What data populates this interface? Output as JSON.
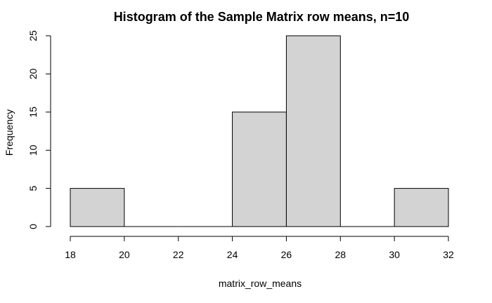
{
  "chart_data": {
    "type": "bar",
    "title": "Histogram of the Sample Matrix row means, n=10",
    "xlabel": "matrix_row_means",
    "ylabel": "Frequency",
    "bins": [
      {
        "from": 18,
        "to": 20,
        "value": 5
      },
      {
        "from": 20,
        "to": 22,
        "value": 0
      },
      {
        "from": 22,
        "to": 24,
        "value": 0
      },
      {
        "from": 24,
        "to": 26,
        "value": 15
      },
      {
        "from": 26,
        "to": 28,
        "value": 25
      },
      {
        "from": 28,
        "to": 30,
        "value": 0
      },
      {
        "from": 30,
        "to": 32,
        "value": 5
      }
    ],
    "xlim": [
      18,
      32
    ],
    "ylim": [
      0,
      25
    ],
    "xticks": [
      18,
      20,
      22,
      24,
      26,
      28,
      30,
      32
    ],
    "yticks": [
      0,
      5,
      10,
      15,
      20,
      25
    ],
    "grid": false,
    "bar_fill": "#d3d3d3",
    "bar_stroke": "#000000"
  }
}
